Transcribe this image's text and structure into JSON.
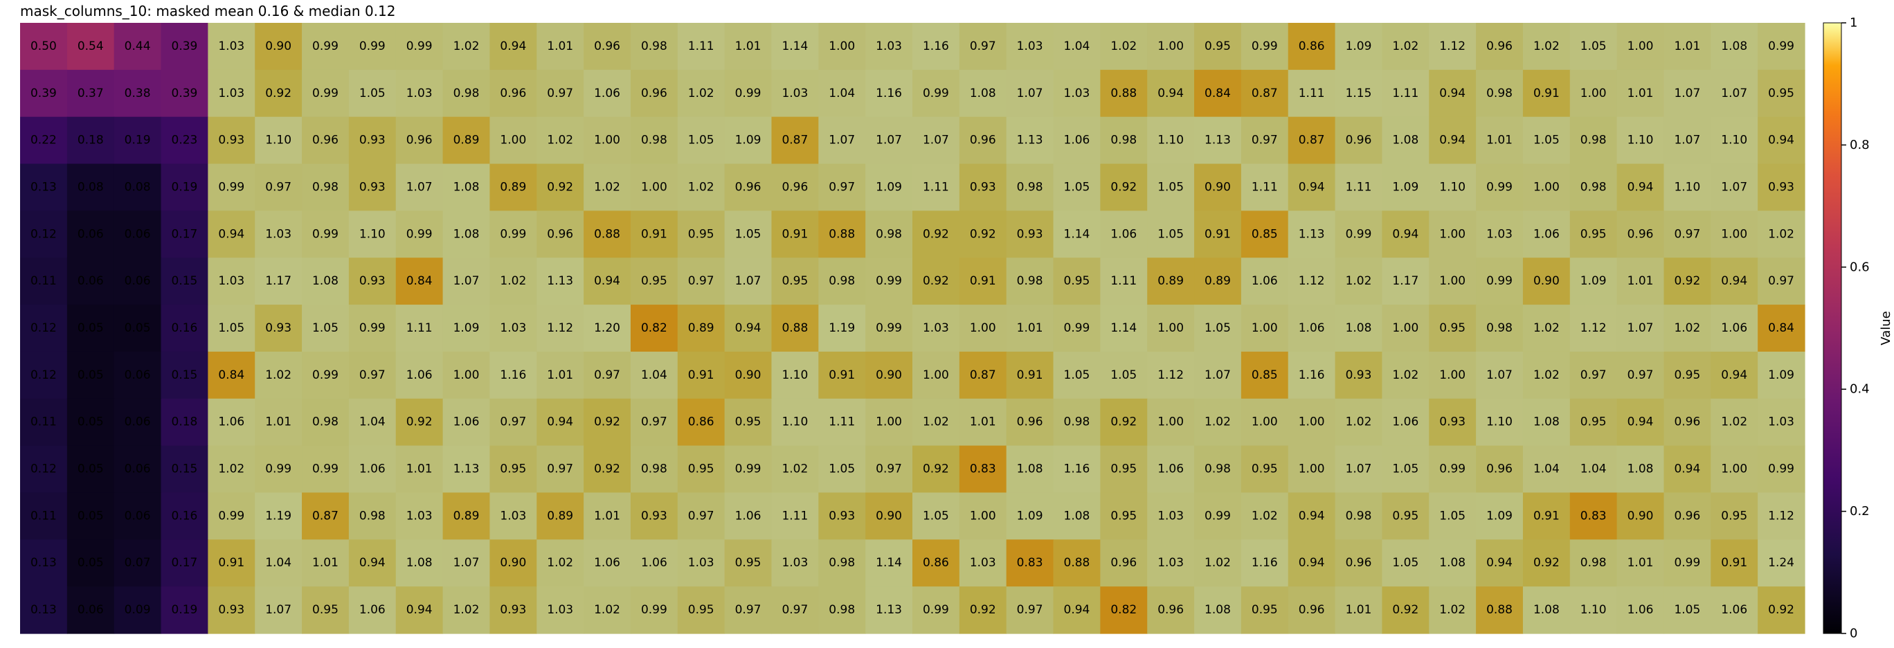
{
  "chart_data": {
    "type": "heatmap",
    "title": "mask_columns_10: masked mean 0.16 & median 0.12",
    "colorbar": {
      "label": "Value",
      "vmin": 0,
      "vmax": 1,
      "ticks": [
        "0",
        "0.2",
        "0.4",
        "0.6",
        "0.8",
        "1"
      ]
    },
    "colormap": "inferno",
    "masked_columns": 4,
    "values": [
      [
        0.5,
        0.54,
        0.44,
        0.39,
        1.03,
        0.9,
        0.99,
        0.99,
        0.99,
        1.02,
        0.94,
        1.01,
        0.96,
        0.98,
        1.11,
        1.01,
        1.14,
        1.0,
        1.03,
        1.16,
        0.97,
        1.03,
        1.04,
        1.02,
        1.0,
        0.95,
        0.99,
        0.86,
        1.09,
        1.02,
        1.12,
        0.96,
        1.02,
        1.05,
        1.0,
        1.01,
        1.08,
        0.99
      ],
      [
        0.39,
        0.37,
        0.38,
        0.39,
        1.03,
        0.92,
        0.99,
        1.05,
        1.03,
        0.98,
        0.96,
        0.97,
        1.06,
        0.96,
        1.02,
        0.99,
        1.03,
        1.04,
        1.16,
        0.99,
        1.08,
        1.07,
        1.03,
        0.88,
        0.94,
        0.84,
        0.87,
        1.11,
        1.15,
        1.11,
        0.94,
        0.98,
        0.91,
        1.0,
        1.01,
        1.07,
        1.07,
        0.95
      ],
      [
        0.22,
        0.18,
        0.19,
        0.23,
        0.93,
        1.1,
        0.96,
        0.93,
        0.96,
        0.89,
        1.0,
        1.02,
        1.0,
        0.98,
        1.05,
        1.09,
        0.87,
        1.07,
        1.07,
        1.07,
        0.96,
        1.13,
        1.06,
        0.98,
        1.1,
        1.13,
        0.97,
        0.87,
        0.96,
        1.08,
        0.94,
        1.01,
        1.05,
        0.98,
        1.1,
        1.07,
        1.1,
        0.94
      ],
      [
        0.13,
        0.08,
        0.08,
        0.19,
        0.99,
        0.97,
        0.98,
        0.93,
        1.07,
        1.08,
        0.89,
        0.92,
        1.02,
        1.0,
        1.02,
        0.96,
        0.96,
        0.97,
        1.09,
        1.11,
        0.93,
        0.98,
        1.05,
        0.92,
        1.05,
        0.9,
        1.11,
        0.94,
        1.11,
        1.09,
        1.1,
        0.99,
        1.0,
        0.98,
        0.94,
        1.1,
        1.07,
        0.93
      ],
      [
        0.12,
        0.06,
        0.06,
        0.17,
        0.94,
        1.03,
        0.99,
        1.1,
        0.99,
        1.08,
        0.99,
        0.96,
        0.88,
        0.91,
        0.95,
        1.05,
        0.91,
        0.88,
        0.98,
        0.92,
        0.92,
        0.93,
        1.14,
        1.06,
        1.05,
        0.91,
        0.85,
        1.13,
        0.99,
        0.94,
        1.0,
        1.03,
        1.06,
        0.95,
        0.96,
        0.97,
        1.0,
        1.02
      ],
      [
        0.11,
        0.06,
        0.06,
        0.15,
        1.03,
        1.17,
        1.08,
        0.93,
        0.84,
        1.07,
        1.02,
        1.13,
        0.94,
        0.95,
        0.97,
        1.07,
        0.95,
        0.98,
        0.99,
        0.92,
        0.91,
        0.98,
        0.95,
        1.11,
        0.89,
        0.89,
        1.06,
        1.12,
        1.02,
        1.17,
        1.0,
        0.99,
        0.9,
        1.09,
        1.01,
        0.92,
        0.94,
        0.97
      ],
      [
        0.12,
        0.05,
        0.05,
        0.16,
        1.05,
        0.93,
        1.05,
        0.99,
        1.11,
        1.09,
        1.03,
        1.12,
        1.2,
        0.82,
        0.89,
        0.94,
        0.88,
        1.19,
        0.99,
        1.03,
        1.0,
        1.01,
        0.99,
        1.14,
        1.0,
        1.05,
        1.0,
        1.06,
        1.08,
        1.0,
        0.95,
        0.98,
        1.02,
        1.12,
        1.07,
        1.02,
        1.06,
        0.84
      ],
      [
        0.12,
        0.05,
        0.06,
        0.15,
        0.84,
        1.02,
        0.99,
        0.97,
        1.06,
        1.0,
        1.16,
        1.01,
        0.97,
        1.04,
        0.91,
        0.9,
        1.1,
        0.91,
        0.9,
        1.0,
        0.87,
        0.91,
        1.05,
        1.05,
        1.12,
        1.07,
        0.85,
        1.16,
        0.93,
        1.02,
        1.0,
        1.07,
        1.02,
        0.97,
        0.97,
        0.95,
        0.94,
        1.09
      ],
      [
        0.11,
        0.05,
        0.06,
        0.18,
        1.06,
        1.01,
        0.98,
        1.04,
        0.92,
        1.06,
        0.97,
        0.94,
        0.92,
        0.97,
        0.86,
        0.95,
        1.1,
        1.11,
        1.0,
        1.02,
        1.01,
        0.96,
        0.98,
        0.92,
        1.0,
        1.02,
        1.0,
        1.0,
        1.02,
        1.06,
        0.93,
        1.1,
        1.08,
        0.95,
        0.94,
        0.96,
        1.02,
        1.03
      ],
      [
        0.12,
        0.05,
        0.06,
        0.15,
        1.02,
        0.99,
        0.99,
        1.06,
        1.01,
        1.13,
        0.95,
        0.97,
        0.92,
        0.98,
        0.95,
        0.99,
        1.02,
        1.05,
        0.97,
        0.92,
        0.83,
        1.08,
        1.16,
        0.95,
        1.06,
        0.98,
        0.95,
        1.0,
        1.07,
        1.05,
        0.99,
        0.96,
        1.04,
        1.04,
        1.08,
        0.94,
        1.0,
        0.99
      ],
      [
        0.11,
        0.05,
        0.06,
        0.16,
        0.99,
        1.19,
        0.87,
        0.98,
        1.03,
        0.89,
        1.03,
        0.89,
        1.01,
        0.93,
        0.97,
        1.06,
        1.11,
        0.93,
        0.9,
        1.05,
        1.0,
        1.09,
        1.08,
        0.95,
        1.03,
        0.99,
        1.02,
        0.94,
        0.98,
        0.95,
        1.05,
        1.09,
        0.91,
        0.83,
        0.9,
        0.96,
        0.95,
        1.12
      ],
      [
        0.13,
        0.05,
        0.07,
        0.17,
        0.91,
        1.04,
        1.01,
        0.94,
        1.08,
        1.07,
        0.9,
        1.02,
        1.06,
        1.06,
        1.03,
        0.95,
        1.03,
        0.98,
        1.14,
        0.86,
        1.03,
        0.83,
        0.88,
        0.96,
        1.03,
        1.02,
        1.16,
        0.94,
        0.96,
        1.05,
        1.08,
        0.94,
        0.92,
        0.98,
        1.01,
        0.99,
        0.91,
        1.24
      ],
      [
        0.13,
        0.06,
        0.09,
        0.19,
        0.93,
        1.07,
        0.95,
        1.06,
        0.94,
        1.02,
        0.93,
        1.03,
        1.02,
        0.99,
        0.95,
        0.97,
        0.97,
        0.98,
        1.13,
        0.99,
        0.92,
        0.97,
        0.94,
        0.82,
        0.96,
        1.08,
        0.95,
        0.96,
        1.01,
        0.92,
        1.02,
        0.88,
        1.08,
        1.1,
        1.06,
        1.05,
        1.06,
        0.92
      ]
    ]
  }
}
